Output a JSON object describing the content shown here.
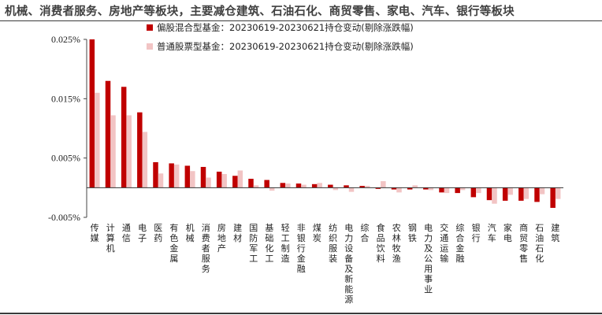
{
  "header": {
    "title": "机械、消费者服务、房地产等板块，主要减仓建筑、石油石化、商贸零售、家电、汽车、银行等板块"
  },
  "chart_data": {
    "type": "bar",
    "categories": [
      "传媒",
      "计算机",
      "通信",
      "电子",
      "医药",
      "有色金属",
      "机械",
      "消费者服务",
      "房地产",
      "建材",
      "国防军工",
      "基础化工",
      "轻工制造",
      "非银行金融",
      "煤炭",
      "纺织服装",
      "电力设备及新能源",
      "综合",
      "食品饮料",
      "农林牧渔",
      "钢铁",
      "电力及公用事业",
      "交通运输",
      "综合金融",
      "银行",
      "汽车",
      "家电",
      "商贸零售",
      "石油石化",
      "建筑"
    ],
    "series": [
      {
        "name": "偏股混合型基金：20230619-20230621持仓变动(剔除涨跌幅)",
        "color": "#c00000",
        "values": [
          0.025,
          0.018,
          0.017,
          0.0127,
          0.0043,
          0.0041,
          0.0037,
          0.0035,
          0.0027,
          0.002,
          0.0015,
          0.0013,
          0.0008,
          0.0007,
          0.0006,
          0.0005,
          0.0004,
          0.0003,
          -0.0002,
          -0.0003,
          -0.0003,
          -0.0003,
          -0.0008,
          -0.0009,
          -0.0016,
          -0.0021,
          -0.0022,
          -0.0022,
          -0.0024,
          -0.0034
        ]
      },
      {
        "name": "普通股票型基金：20230619-20230621持仓变动(剔除涨跌幅)",
        "color": "#f2c4c4",
        "values": [
          0.016,
          0.0122,
          0.0122,
          0.0094,
          0.0024,
          0.0039,
          0.0028,
          0.0017,
          0.0023,
          0.0029,
          0.0004,
          -0.0005,
          0.0007,
          0.0005,
          0.0008,
          -0.0004,
          -0.0007,
          0.0003,
          0.0011,
          -0.0008,
          0.0004,
          -0.0004,
          -0.0009,
          -0.0004,
          -0.0009,
          -0.0027,
          -0.0012,
          -0.0019,
          -0.0011,
          -0.0019
        ]
      }
    ],
    "yticks": [
      0.025,
      0.015,
      0.005,
      -0.005
    ],
    "yticklabels": [
      "0.025%",
      "0.015%",
      "0.005%",
      "-0.005%"
    ],
    "ylim": [
      -0.005,
      0.025
    ],
    "legend_position": "top-center"
  }
}
